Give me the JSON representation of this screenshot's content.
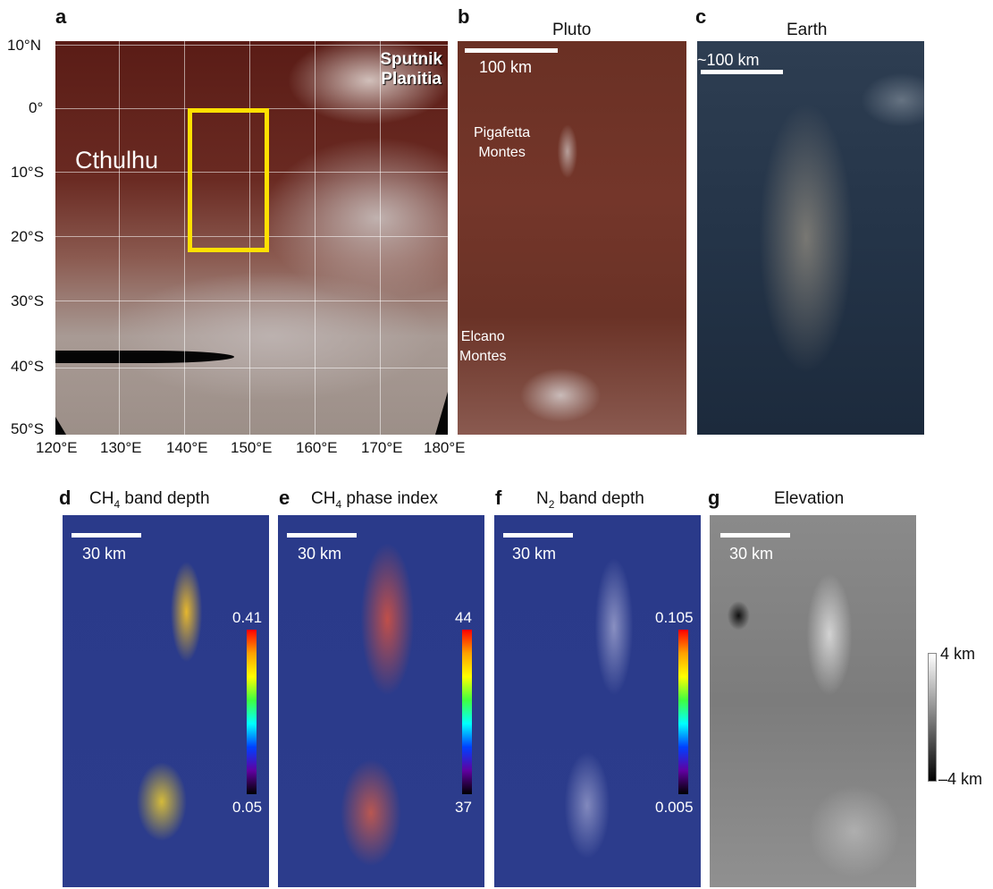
{
  "panels": {
    "a": {
      "letter": "a",
      "labels": {
        "cthulhu": "Cthulhu",
        "sputnik_line1": "Sputnik",
        "sputnik_line2": "Planitia"
      },
      "lat_ticks": [
        "10°N",
        "0°",
        "10°S",
        "20°S",
        "30°S",
        "40°S",
        "50°S"
      ],
      "lon_ticks": [
        "120°E",
        "130°E",
        "140°E",
        "150°E",
        "160°E",
        "170°E",
        "180°E"
      ],
      "box_color": "#ffe000"
    },
    "b": {
      "letter": "b",
      "title": "Pluto",
      "scale": "100 km",
      "labels": {
        "pigafetta_1": "Pigafetta",
        "pigafetta_2": "Montes",
        "elcano_1": "Elcano",
        "elcano_2": "Montes"
      }
    },
    "c": {
      "letter": "c",
      "title": "Earth",
      "scale": "~100 km"
    },
    "d": {
      "letter": "d",
      "title_main": "CH",
      "title_sub": "4",
      "title_rest": " band depth",
      "scale": "30 km",
      "cbar_max": "0.41",
      "cbar_min": "0.05"
    },
    "e": {
      "letter": "e",
      "title_main": "CH",
      "title_sub": "4",
      "title_rest": " phase index",
      "scale": "30 km",
      "cbar_max": "44",
      "cbar_min": "37"
    },
    "f": {
      "letter": "f",
      "title_main": "N",
      "title_sub": "2",
      "title_rest": " band depth",
      "scale": "30 km",
      "cbar_max": "0.105",
      "cbar_min": "0.005"
    },
    "g": {
      "letter": "g",
      "title": "Elevation",
      "scale": "30 km",
      "cbar_max": "4 km",
      "cbar_min": "–4 km"
    }
  }
}
